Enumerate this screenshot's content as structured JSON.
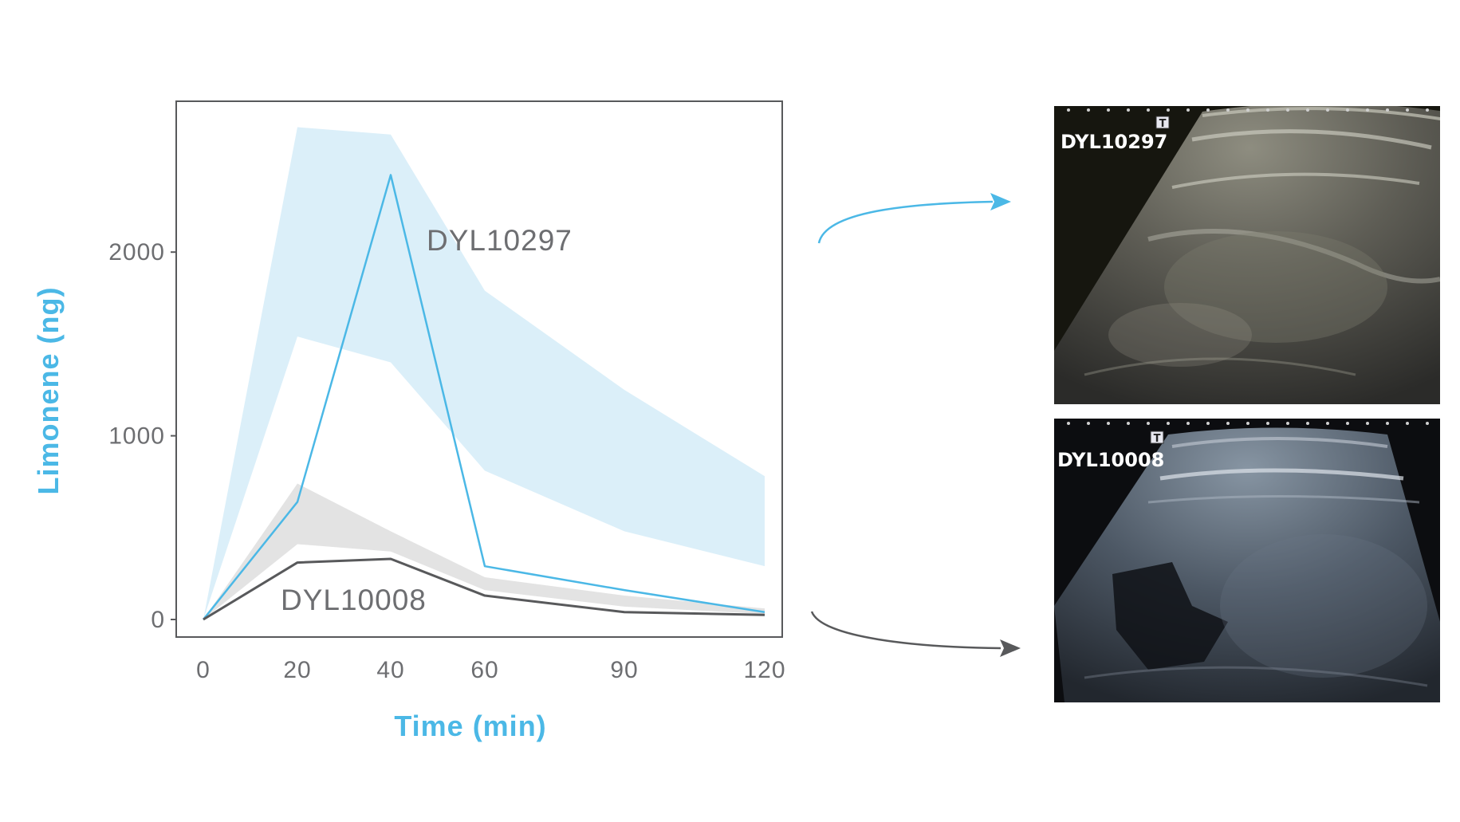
{
  "colors": {
    "accent_blue": "#4bb8e6",
    "band_blue": "#dbeff9",
    "dark_gray": "#58595b",
    "band_gray": "#e3e3e3",
    "tick_gray": "#6d6e71"
  },
  "chart_data": {
    "type": "line",
    "title": "",
    "xlabel": "Time (min)",
    "ylabel": "Limonene (ng)",
    "x": [
      0,
      20,
      40,
      60,
      90,
      120
    ],
    "x_tick_labels": [
      "0",
      "20",
      "40",
      "60",
      "90",
      "120"
    ],
    "y_ticks": [
      0,
      1000,
      2000
    ],
    "y_tick_labels": [
      "0",
      "1000",
      "2000"
    ],
    "ylim": [
      -130,
      2820
    ],
    "grid": false,
    "legend": "none",
    "series": [
      {
        "name": "DYL10297",
        "color": "#4bb8e6",
        "values": [
          0,
          640,
          2420,
          290,
          160,
          40
        ],
        "band_upper": [
          0,
          2680,
          2640,
          1790,
          1250,
          780
        ],
        "band_lower": [
          0,
          1540,
          1400,
          810,
          480,
          290
        ]
      },
      {
        "name": "DYL10008",
        "color": "#58595b",
        "values": [
          0,
          310,
          330,
          130,
          40,
          25
        ],
        "band_upper": [
          0,
          740,
          480,
          230,
          130,
          60
        ],
        "band_lower": [
          0,
          410,
          370,
          160,
          70,
          30
        ]
      }
    ]
  },
  "scans": [
    {
      "label": "DYL10297",
      "marker": "T"
    },
    {
      "label": "DYL10008",
      "marker": "T"
    }
  ]
}
